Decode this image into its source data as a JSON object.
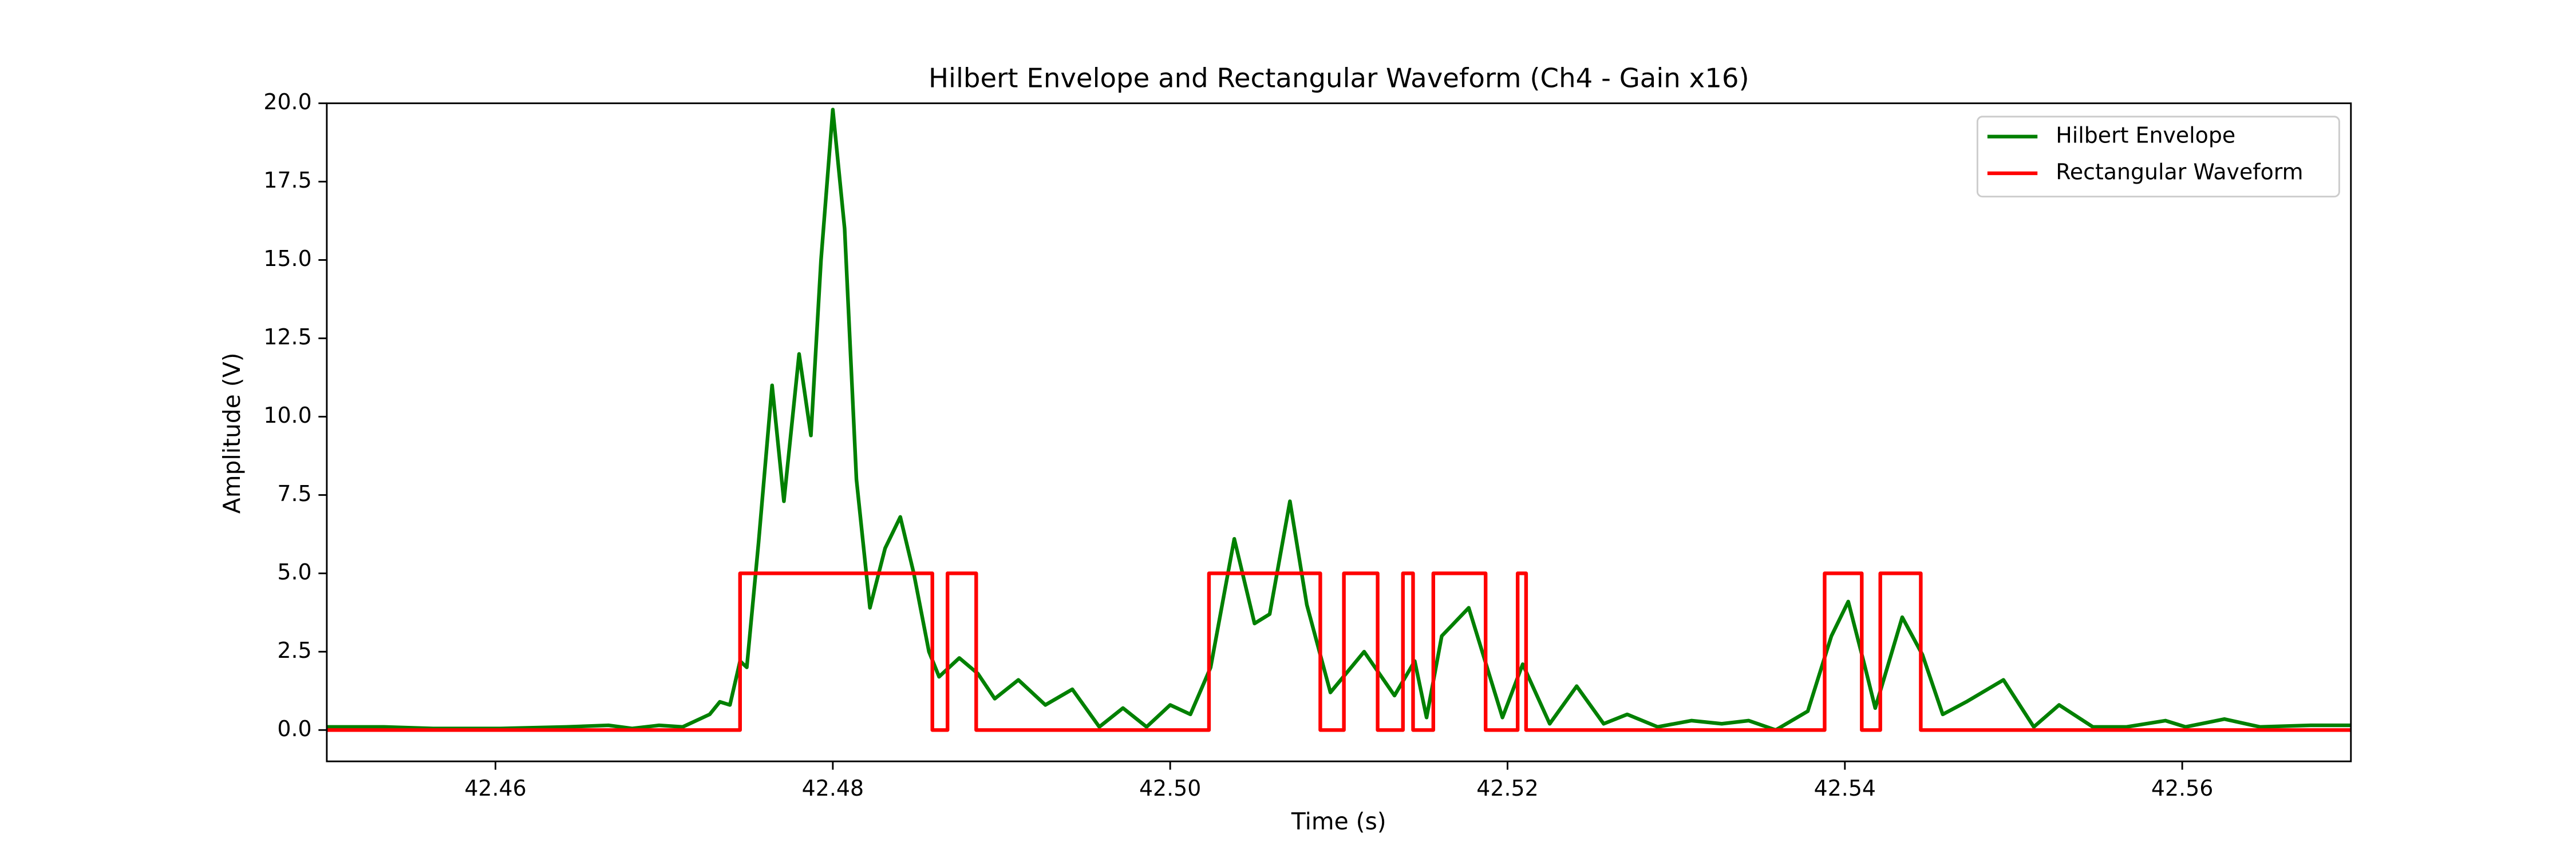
{
  "chart_data": {
    "type": "line",
    "title": "Hilbert Envelope and Rectangular Waveform (Ch4 - Gain x16)",
    "x_label": "Time (s)",
    "y_label": "Amplitude (V)",
    "xlim": [
      42.45,
      42.57
    ],
    "ylim": [
      -1.0,
      20.0
    ],
    "xticks": [
      42.46,
      42.48,
      {
        "value": 42.5,
        "label": "42.50"
      },
      42.52,
      42.54,
      42.56
    ],
    "yticks": [
      {
        "value": 0,
        "label": "0.0"
      },
      2.5,
      {
        "value": 5,
        "label": "5.0"
      },
      7.5,
      {
        "value": 10,
        "label": "10.0"
      },
      12.5,
      {
        "value": 15,
        "label": "15.0"
      },
      17.5,
      {
        "value": 20,
        "label": "20.0"
      }
    ],
    "grid": false,
    "legend": "upper right",
    "series": [
      {
        "name": "Hilbert Envelope",
        "color": "#008000",
        "x": [
          42.45,
          42.4534,
          42.4563,
          42.4603,
          42.4642,
          42.4667,
          42.4681,
          42.4697,
          42.4711,
          42.4727,
          42.4733,
          42.4739,
          42.4745,
          42.4749,
          42.4756,
          42.4764,
          42.4771,
          42.478,
          42.4787,
          42.4793,
          42.48,
          42.4807,
          42.4814,
          42.4822,
          42.4831,
          42.484,
          42.4848,
          42.4857,
          42.4863,
          42.4875,
          42.4886,
          42.4896,
          42.491,
          42.4926,
          42.4942,
          42.4958,
          42.4972,
          42.4986,
          42.5,
          42.5012,
          42.5024,
          42.5038,
          42.505,
          42.5059,
          42.5071,
          42.5081,
          42.5095,
          42.5115,
          42.5133,
          42.5145,
          42.5152,
          42.5161,
          42.5177,
          42.5189,
          42.5197,
          42.5209,
          42.5225,
          42.5241,
          42.5257,
          42.5271,
          42.5289,
          42.5309,
          42.5327,
          42.5343,
          42.5359,
          42.5378,
          42.5392,
          42.5402,
          42.5412,
          42.5418,
          42.5434,
          42.5446,
          42.5458,
          42.5472,
          42.5494,
          42.5512,
          42.5527,
          42.5547,
          42.5567,
          42.559,
          42.5602,
          42.5625,
          42.5646,
          42.5676,
          42.57
        ],
        "values": [
          0.1,
          0.1,
          0.05,
          0.05,
          0.1,
          0.15,
          0.05,
          0.15,
          0.1,
          0.5,
          0.9,
          0.8,
          2.2,
          2.0,
          6.0,
          11.0,
          7.3,
          12.0,
          9.4,
          15,
          19.8,
          16,
          8,
          3.9,
          5.8,
          6.8,
          5.0,
          2.5,
          1.7,
          2.3,
          1.8,
          1.0,
          1.6,
          0.8,
          1.3,
          0.1,
          0.7,
          0.1,
          0.8,
          0.5,
          2.0,
          6.1,
          3.4,
          3.7,
          7.3,
          4.0,
          1.2,
          2.5,
          1.1,
          2.2,
          0.4,
          3.0,
          3.9,
          1.8,
          0.4,
          2.1,
          0.2,
          1.4,
          0.2,
          0.5,
          0.1,
          0.3,
          0.2,
          0.3,
          0.0,
          0.6,
          3.0,
          4.1,
          2.0,
          0.7,
          3.6,
          2.4,
          0.5,
          0.9,
          1.6,
          0.1,
          0.8,
          0.1,
          0.1,
          0.3,
          0.1,
          0.35,
          0.1,
          0.15,
          0.15
        ]
      },
      {
        "name": "Rectangular Waveform",
        "color": "#ff0000",
        "x": [
          42.45,
          42.4745,
          42.4745,
          42.4859,
          42.4859,
          42.4868,
          42.4868,
          42.4885,
          42.4885,
          42.5023,
          42.5023,
          42.5089,
          42.5089,
          42.5103,
          42.5103,
          42.5123,
          42.5123,
          42.5138,
          42.5138,
          42.5144,
          42.5144,
          42.5156,
          42.5156,
          42.5187,
          42.5187,
          42.5206,
          42.5206,
          42.5211,
          42.5211,
          42.5388,
          42.5388,
          42.541,
          42.541,
          42.5421,
          42.5421,
          42.5445,
          42.5445,
          42.57
        ],
        "values": [
          0,
          0,
          5,
          5,
          0,
          0,
          5,
          5,
          0,
          0,
          5,
          5,
          0,
          0,
          5,
          5,
          0,
          0,
          5,
          5,
          0,
          0,
          5,
          5,
          0,
          0,
          5,
          5,
          0,
          0,
          5,
          5,
          0,
          0,
          5,
          5,
          0,
          0
        ]
      }
    ]
  }
}
